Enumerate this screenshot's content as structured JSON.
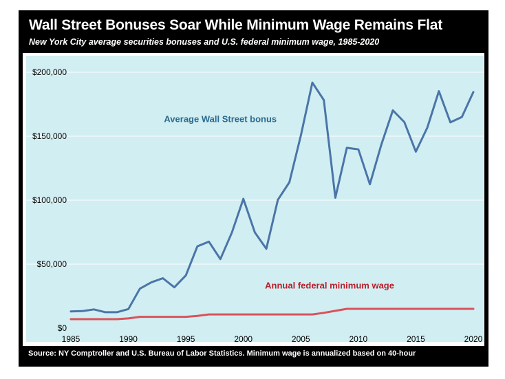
{
  "header": {
    "title": "Wall Street Bonuses Soar While Minimum Wage Remains Flat",
    "subtitle": "New York City average securities bonuses and U.S. federal minimum wage, 1985-2020"
  },
  "footer": {
    "source": "Source: NY Comptroller and U.S. Bureau of Labor Statistics. Minimum wage is annualized based on 40-hour"
  },
  "colors": {
    "plot_background": "#d1eef2",
    "bonus_line": "#4a75a8",
    "bonus_label": "#2c6a8f",
    "wage_line": "#d9525c",
    "wage_label": "#b81f2c",
    "gridline": "#ffffff"
  },
  "chart_data": {
    "type": "line",
    "title": "Wall Street Bonuses Soar While Minimum Wage Remains Flat",
    "subtitle": "New York City average securities bonuses and U.S. federal minimum wage, 1985-2020",
    "xlabel": "",
    "ylabel": "",
    "xlim": [
      1985,
      2020
    ],
    "ylim": [
      0,
      200000
    ],
    "grid": true,
    "x_ticks": [
      1985,
      1990,
      1995,
      2000,
      2005,
      2010,
      2015,
      2020
    ],
    "y_ticks": [
      0,
      50000,
      100000,
      150000,
      200000
    ],
    "x_tick_labels": [
      "1985",
      "1990",
      "1995",
      "2000",
      "2005",
      "2010",
      "2015",
      "2020"
    ],
    "y_tick_labels": [
      "$0",
      "$50,000",
      "$100,000",
      "$150,000",
      "$200,000"
    ],
    "x": [
      1985,
      1986,
      1987,
      1988,
      1989,
      1990,
      1991,
      1992,
      1993,
      1994,
      1995,
      1996,
      1997,
      1998,
      1999,
      2000,
      2001,
      2002,
      2003,
      2004,
      2005,
      2006,
      2007,
      2008,
      2009,
      2010,
      2011,
      2012,
      2013,
      2014,
      2015,
      2016,
      2017,
      2018,
      2019,
      2020
    ],
    "series": [
      {
        "name": "Average Wall Street bonus",
        "values": [
          13000,
          13300,
          14600,
          12400,
          12400,
          14900,
          30800,
          35800,
          39000,
          31900,
          41200,
          63900,
          67600,
          53900,
          74600,
          101000,
          74800,
          62000,
          100300,
          114000,
          150600,
          191900,
          178200,
          101900,
          140900,
          139700,
          112500,
          143500,
          170200,
          161000,
          137900,
          156700,
          185200,
          160800,
          165000,
          184500
        ]
      },
      {
        "name": "Annual federal minimum wage",
        "values": [
          6968,
          6968,
          6968,
          6968,
          6968,
          7592,
          8840,
          8840,
          8840,
          8840,
          8840,
          9568,
          10712,
          10712,
          10712,
          10712,
          10712,
          10712,
          10712,
          10712,
          10712,
          10712,
          11960,
          13520,
          15080,
          15080,
          15080,
          15080,
          15080,
          15080,
          15080,
          15080,
          15080,
          15080,
          15080,
          15080
        ]
      }
    ],
    "annotations": [
      {
        "text": "Average Wall Street bonus",
        "series": 0,
        "x": 1998,
        "y": 161000
      },
      {
        "text": "Annual federal minimum wage",
        "series": 1,
        "x": 2007.5,
        "y": 31000
      }
    ]
  }
}
